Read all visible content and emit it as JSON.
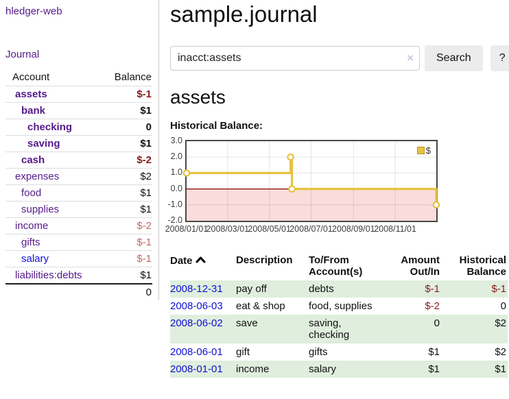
{
  "app": {
    "brand": "hledger-web"
  },
  "sidebar": {
    "journal_link": "Journal",
    "accounts_table": {
      "headers": {
        "account": "Account",
        "balance": "Balance"
      },
      "rows": [
        {
          "name": "assets",
          "balance": "$-1"
        },
        {
          "name": "bank",
          "balance": "$1"
        },
        {
          "name": "checking",
          "balance": "0"
        },
        {
          "name": "saving",
          "balance": "$1"
        },
        {
          "name": "cash",
          "balance": "$-2"
        },
        {
          "name": "expenses",
          "balance": "$2"
        },
        {
          "name": "food",
          "balance": "$1"
        },
        {
          "name": "supplies",
          "balance": "$1"
        },
        {
          "name": "income",
          "balance": "$-2"
        },
        {
          "name": "gifts",
          "balance": "$-1"
        },
        {
          "name": "salary",
          "balance": "$-1"
        },
        {
          "name": "liabilities:debts",
          "balance": "$1"
        }
      ],
      "total": "0"
    }
  },
  "header": {
    "title": "sample.journal"
  },
  "search": {
    "value": "inacct:assets",
    "clear_label": "×",
    "button_label": "Search",
    "help_label": "?"
  },
  "account_page": {
    "heading": "assets",
    "chart_label": "Historical Balance:"
  },
  "chart_data": {
    "type": "line",
    "title": "Historical Balance",
    "step": true,
    "series": [
      {
        "name": "$",
        "points": [
          {
            "x": "2008-01-01",
            "y": 1
          },
          {
            "x": "2008-06-01",
            "y": 2
          },
          {
            "x": "2008-06-03",
            "y": 0
          },
          {
            "x": "2008-12-31",
            "y": -1
          }
        ]
      }
    ],
    "xlim": [
      "2008-01-01",
      "2008-12-31"
    ],
    "ylim": [
      -2,
      3
    ],
    "x_ticks": [
      "2008/01/01",
      "2008/03/01",
      "2008/05/01",
      "2008/07/01",
      "2008/09/01",
      "2008/11/01"
    ],
    "y_ticks": [
      "3.0",
      "2.0",
      "1.0",
      "0.0",
      "-1.0",
      "-2.0"
    ],
    "legend": {
      "label": "$",
      "position": "top-right"
    },
    "grid": true,
    "series_color": "#e8c240",
    "negative_region_color": "#fadcdc",
    "zero_line_color": "#8b0000"
  },
  "register_table": {
    "headers": {
      "date": "Date",
      "description": "Description",
      "accounts": "To/From Account(s)",
      "amount": "Amount Out/In",
      "balance": "Historical Balance"
    },
    "rows": [
      {
        "date": "2008-12-31",
        "description": "pay off",
        "accounts": "debts",
        "amount": "$-1",
        "balance": "$-1"
      },
      {
        "date": "2008-06-03",
        "description": "eat & shop",
        "accounts": "food, supplies",
        "amount": "$-2",
        "balance": "0"
      },
      {
        "date": "2008-06-02",
        "description": "save",
        "accounts": "saving, checking",
        "amount": "0",
        "balance": "$2"
      },
      {
        "date": "2008-06-01",
        "description": "gift",
        "accounts": "gifts",
        "amount": "$1",
        "balance": "$2"
      },
      {
        "date": "2008-01-01",
        "description": "income",
        "accounts": "salary",
        "amount": "$1",
        "balance": "$1"
      }
    ]
  },
  "colors": {
    "link_purple": "#551a8b",
    "link_blue": "#0f0fd6",
    "negative_strong": "#861b1b",
    "negative_muted": "#bb6a6a",
    "row_green": "#dfeedd",
    "series_gold": "#e8c240",
    "negative_region_pink": "#fadcdc",
    "zero_line_red": "#8b0000"
  }
}
